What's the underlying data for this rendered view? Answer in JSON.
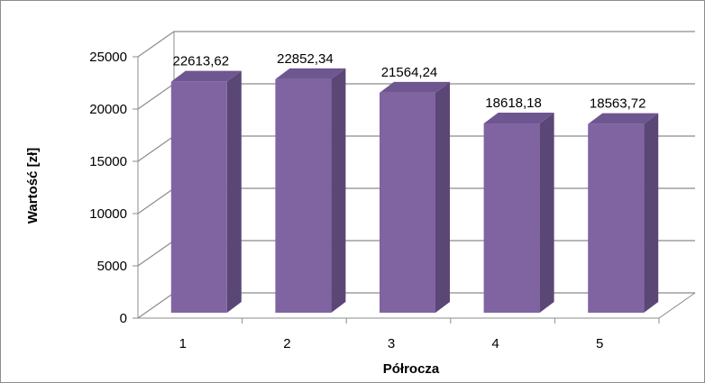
{
  "chart_data": {
    "type": "bar",
    "categories": [
      "1",
      "2",
      "3",
      "4",
      "5"
    ],
    "values": [
      22613.62,
      22852.34,
      21564.24,
      18618.18,
      18563.72
    ],
    "value_labels": [
      "22613,62",
      "22852,34",
      "21564,24",
      "18618,18",
      "18563,72"
    ],
    "xlabel": "Półrocza",
    "ylabel": "Wartość [zł]",
    "ylim": [
      0,
      25000
    ],
    "yticks": [
      0,
      5000,
      10000,
      15000,
      20000,
      25000
    ],
    "ytick_labels": [
      "0",
      "5000",
      "10000",
      "15000",
      "20000",
      "25000"
    ],
    "grid": true,
    "style": "3d-column",
    "colors": {
      "bar_front": "#8064a2",
      "bar_side": "#5b4776",
      "bar_top": "#6e5690",
      "grid": "#8c8c8c",
      "axis": "#8c8c8c"
    }
  }
}
